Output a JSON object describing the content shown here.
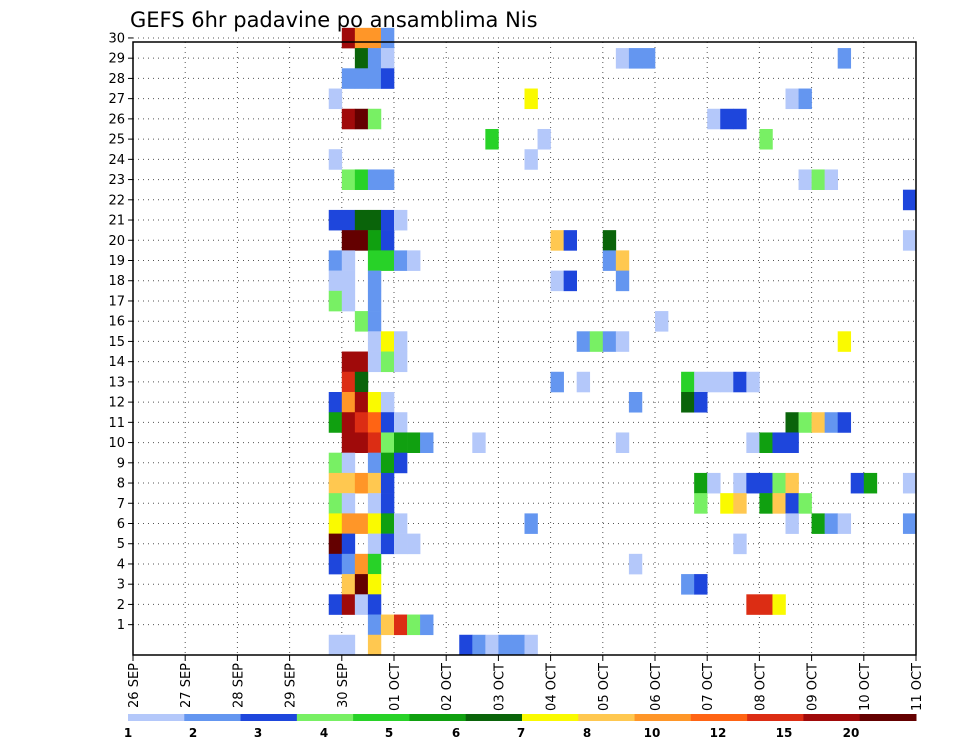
{
  "chart_data": {
    "type": "heatmap",
    "title": "GEFS 6hr padavine po ansamblima Nis",
    "x_ticks": [
      "26 SEP",
      "27 SEP",
      "28 SEP",
      "29 SEP",
      "30 SEP",
      "01 OCT",
      "02 OCT",
      "03 OCT",
      "04 OCT",
      "05 OCT",
      "06 OCT",
      "07 OCT",
      "08 OCT",
      "09 OCT",
      "10 OCT",
      "11 OCT"
    ],
    "y_ticks": [
      "1",
      "2",
      "3",
      "4",
      "5",
      "6",
      "7",
      "8",
      "9",
      "10",
      "11",
      "12",
      "13",
      "14",
      "15",
      "16",
      "17",
      "18",
      "19",
      "20",
      "21",
      "22",
      "23",
      "24",
      "25",
      "26",
      "27",
      "28",
      "29",
      "30"
    ],
    "x_range": [
      "26 SEP",
      "11 OCT"
    ],
    "y_range": [
      0,
      30
    ],
    "grid": true,
    "colorbar": {
      "labels": [
        "1",
        "2",
        "3",
        "4",
        "5",
        "6",
        "7",
        "8",
        "10",
        "12",
        "15",
        "20"
      ],
      "colors": [
        "#b4c8fa",
        "#6496f0",
        "#1e46dc",
        "#78f064",
        "#28d228",
        "#10a010",
        "#0a640a",
        "#fafa00",
        "#ffc850",
        "#ff9628",
        "#ff6414",
        "#dc2d14",
        "#a00a0a",
        "#640000"
      ]
    },
    "cells": [
      {
        "row": 30,
        "x": "30 SEP 00z",
        "c": "#a00a0a"
      },
      {
        "row": 30,
        "x": "30 SEP 06z",
        "c": "#ff9628"
      },
      {
        "row": 30,
        "x": "30 SEP 12z",
        "c": "#ff9628"
      },
      {
        "row": 30,
        "x": "30 SEP 18z",
        "c": "#6496f0"
      },
      {
        "row": 29,
        "x": "30 SEP 06z",
        "c": "#0a640a"
      },
      {
        "row": 29,
        "x": "30 SEP 12z",
        "c": "#6496f0"
      },
      {
        "row": 29,
        "x": "30 SEP 18z",
        "c": "#b4c8fa"
      },
      {
        "row": 29,
        "x": "05 OCT 06z",
        "c": "#b4c8fa"
      },
      {
        "row": 29,
        "x": "05 OCT 12z",
        "c": "#6496f0"
      },
      {
        "row": 29,
        "x": "05 OCT 18z",
        "c": "#6496f0"
      },
      {
        "row": 29,
        "x": "09 OCT 12z",
        "c": "#6496f0"
      },
      {
        "row": 28,
        "x": "30 SEP 00z",
        "c": "#6496f0"
      },
      {
        "row": 28,
        "x": "30 SEP 06z",
        "c": "#6496f0"
      },
      {
        "row": 28,
        "x": "30 SEP 12z",
        "c": "#6496f0"
      },
      {
        "row": 28,
        "x": "30 SEP 18z",
        "c": "#1e46dc"
      },
      {
        "row": 27,
        "x": "29 SEP 18z",
        "c": "#b4c8fa"
      },
      {
        "row": 27,
        "x": "03 OCT 12z",
        "c": "#fafa00"
      },
      {
        "row": 27,
        "x": "08 OCT 12z",
        "c": "#b4c8fa"
      },
      {
        "row": 27,
        "x": "08 OCT 18z",
        "c": "#6496f0"
      },
      {
        "row": 26,
        "x": "30 SEP 00z",
        "c": "#a00a0a"
      },
      {
        "row": 26,
        "x": "30 SEP 06z",
        "c": "#640000"
      },
      {
        "row": 26,
        "x": "30 SEP 12z",
        "c": "#78f064"
      },
      {
        "row": 26,
        "x": "07 OCT 00z",
        "c": "#b4c8fa"
      },
      {
        "row": 26,
        "x": "07 OCT 06z",
        "c": "#1e46dc"
      },
      {
        "row": 26,
        "x": "07 OCT 12z",
        "c": "#1e46dc"
      },
      {
        "row": 25,
        "x": "02 OCT 18z",
        "c": "#28d228"
      },
      {
        "row": 25,
        "x": "03 OCT 18z",
        "c": "#b4c8fa"
      },
      {
        "row": 25,
        "x": "08 OCT 00z",
        "c": "#78f064"
      },
      {
        "row": 24,
        "x": "29 SEP 18z",
        "c": "#b4c8fa"
      },
      {
        "row": 24,
        "x": "03 OCT 12z",
        "c": "#b4c8fa"
      },
      {
        "row": 23,
        "x": "30 SEP 00z",
        "c": "#78f064"
      },
      {
        "row": 23,
        "x": "30 SEP 06z",
        "c": "#28d228"
      },
      {
        "row": 23,
        "x": "30 SEP 12z",
        "c": "#6496f0"
      },
      {
        "row": 23,
        "x": "30 SEP 18z",
        "c": "#6496f0"
      },
      {
        "row": 23,
        "x": "08 OCT 18z",
        "c": "#b4c8fa"
      },
      {
        "row": 23,
        "x": "09 OCT 00z",
        "c": "#78f064"
      },
      {
        "row": 23,
        "x": "09 OCT 06z",
        "c": "#b4c8fa"
      },
      {
        "row": 22,
        "x": "10 OCT 18z",
        "c": "#1e46dc"
      },
      {
        "row": 21,
        "x": "29 SEP 18z",
        "c": "#1e46dc"
      },
      {
        "row": 21,
        "x": "30 SEP 00z",
        "c": "#1e46dc"
      },
      {
        "row": 21,
        "x": "30 SEP 06z",
        "c": "#0a640a"
      },
      {
        "row": 21,
        "x": "30 SEP 12z",
        "c": "#0a640a"
      },
      {
        "row": 21,
        "x": "30 SEP 18z",
        "c": "#1e46dc"
      },
      {
        "row": 21,
        "x": "01 OCT 00z",
        "c": "#b4c8fa"
      },
      {
        "row": 20,
        "x": "30 SEP 00z",
        "c": "#640000"
      },
      {
        "row": 20,
        "x": "30 SEP 06z",
        "c": "#640000"
      },
      {
        "row": 20,
        "x": "30 SEP 12z",
        "c": "#10a010"
      },
      {
        "row": 20,
        "x": "30 SEP 18z",
        "c": "#1e46dc"
      },
      {
        "row": 20,
        "x": "04 OCT 00z",
        "c": "#ffc850"
      },
      {
        "row": 20,
        "x": "04 OCT 06z",
        "c": "#1e46dc"
      },
      {
        "row": 20,
        "x": "05 OCT 00z",
        "c": "#0a640a"
      },
      {
        "row": 20,
        "x": "10 OCT 18z",
        "c": "#b4c8fa"
      },
      {
        "row": 19,
        "x": "29 SEP 18z",
        "c": "#6496f0"
      },
      {
        "row": 19,
        "x": "30 SEP 00z",
        "c": "#b4c8fa"
      },
      {
        "row": 19,
        "x": "30 SEP 12z",
        "c": "#28d228"
      },
      {
        "row": 19,
        "x": "30 SEP 18z",
        "c": "#28d228"
      },
      {
        "row": 19,
        "x": "01 OCT 00z",
        "c": "#6496f0"
      },
      {
        "row": 19,
        "x": "01 OCT 06z",
        "c": "#b4c8fa"
      },
      {
        "row": 19,
        "x": "05 OCT 00z",
        "c": "#6496f0"
      },
      {
        "row": 19,
        "x": "05 OCT 06z",
        "c": "#ffc850"
      },
      {
        "row": 18,
        "x": "29 SEP 18z",
        "c": "#b4c8fa"
      },
      {
        "row": 18,
        "x": "30 SEP 00z",
        "c": "#b4c8fa"
      },
      {
        "row": 18,
        "x": "30 SEP 12z",
        "c": "#6496f0"
      },
      {
        "row": 18,
        "x": "04 OCT 00z",
        "c": "#b4c8fa"
      },
      {
        "row": 18,
        "x": "04 OCT 06z",
        "c": "#1e46dc"
      },
      {
        "row": 18,
        "x": "05 OCT 06z",
        "c": "#6496f0"
      },
      {
        "row": 17,
        "x": "29 SEP 18z",
        "c": "#78f064"
      },
      {
        "row": 17,
        "x": "30 SEP 00z",
        "c": "#b4c8fa"
      },
      {
        "row": 17,
        "x": "30 SEP 12z",
        "c": "#6496f0"
      },
      {
        "row": 16,
        "x": "30 SEP 06z",
        "c": "#78f064"
      },
      {
        "row": 16,
        "x": "30 SEP 12z",
        "c": "#6496f0"
      },
      {
        "row": 16,
        "x": "06 OCT 00z",
        "c": "#b4c8fa"
      },
      {
        "row": 15,
        "x": "30 SEP 12z",
        "c": "#b4c8fa"
      },
      {
        "row": 15,
        "x": "30 SEP 18z",
        "c": "#fafa00"
      },
      {
        "row": 15,
        "x": "01 OCT 00z",
        "c": "#b4c8fa"
      },
      {
        "row": 15,
        "x": "04 OCT 12z",
        "c": "#6496f0"
      },
      {
        "row": 15,
        "x": "04 OCT 18z",
        "c": "#78f064"
      },
      {
        "row": 15,
        "x": "05 OCT 00z",
        "c": "#6496f0"
      },
      {
        "row": 15,
        "x": "05 OCT 06z",
        "c": "#b4c8fa"
      },
      {
        "row": 15,
        "x": "09 OCT 12z",
        "c": "#fafa00"
      },
      {
        "row": 14,
        "x": "30 SEP 00z",
        "c": "#a00a0a"
      },
      {
        "row": 14,
        "x": "30 SEP 06z",
        "c": "#a00a0a"
      },
      {
        "row": 14,
        "x": "30 SEP 12z",
        "c": "#b4c8fa"
      },
      {
        "row": 14,
        "x": "30 SEP 18z",
        "c": "#78f064"
      },
      {
        "row": 14,
        "x": "01 OCT 00z",
        "c": "#b4c8fa"
      },
      {
        "row": 13,
        "x": "30 SEP 00z",
        "c": "#dc2d14"
      },
      {
        "row": 13,
        "x": "30 SEP 06z",
        "c": "#0a640a"
      },
      {
        "row": 13,
        "x": "04 OCT 00z",
        "c": "#6496f0"
      },
      {
        "row": 13,
        "x": "04 OCT 12z",
        "c": "#b4c8fa"
      },
      {
        "row": 13,
        "x": "06 OCT 12z",
        "c": "#28d228"
      },
      {
        "row": 13,
        "x": "06 OCT 18z",
        "c": "#b4c8fa"
      },
      {
        "row": 13,
        "x": "07 OCT 00z",
        "c": "#b4c8fa"
      },
      {
        "row": 13,
        "x": "07 OCT 06z",
        "c": "#b4c8fa"
      },
      {
        "row": 13,
        "x": "07 OCT 12z",
        "c": "#1e46dc"
      },
      {
        "row": 13,
        "x": "07 OCT 18z",
        "c": "#b4c8fa"
      },
      {
        "row": 12,
        "x": "29 SEP 18z",
        "c": "#1e46dc"
      },
      {
        "row": 12,
        "x": "30 SEP 00z",
        "c": "#ff9628"
      },
      {
        "row": 12,
        "x": "30 SEP 06z",
        "c": "#a00a0a"
      },
      {
        "row": 12,
        "x": "30 SEP 12z",
        "c": "#fafa00"
      },
      {
        "row": 12,
        "x": "30 SEP 18z",
        "c": "#b4c8fa"
      },
      {
        "row": 12,
        "x": "05 OCT 12z",
        "c": "#6496f0"
      },
      {
        "row": 12,
        "x": "06 OCT 12z",
        "c": "#0a640a"
      },
      {
        "row": 12,
        "x": "06 OCT 18z",
        "c": "#1e46dc"
      },
      {
        "row": 11,
        "x": "29 SEP 18z",
        "c": "#10a010"
      },
      {
        "row": 11,
        "x": "30 SEP 00z",
        "c": "#a00a0a"
      },
      {
        "row": 11,
        "x": "30 SEP 06z",
        "c": "#dc2d14"
      },
      {
        "row": 11,
        "x": "30 SEP 12z",
        "c": "#ff6414"
      },
      {
        "row": 11,
        "x": "30 SEP 18z",
        "c": "#1e46dc"
      },
      {
        "row": 11,
        "x": "01 OCT 00z",
        "c": "#b4c8fa"
      },
      {
        "row": 11,
        "x": "08 OCT 12z",
        "c": "#0a640a"
      },
      {
        "row": 11,
        "x": "08 OCT 18z",
        "c": "#78f064"
      },
      {
        "row": 11,
        "x": "09 OCT 00z",
        "c": "#ffc850"
      },
      {
        "row": 11,
        "x": "09 OCT 06z",
        "c": "#6496f0"
      },
      {
        "row": 11,
        "x": "09 OCT 12z",
        "c": "#1e46dc"
      },
      {
        "row": 10,
        "x": "30 SEP 00z",
        "c": "#a00a0a"
      },
      {
        "row": 10,
        "x": "30 SEP 06z",
        "c": "#a00a0a"
      },
      {
        "row": 10,
        "x": "30 SEP 12z",
        "c": "#dc2d14"
      },
      {
        "row": 10,
        "x": "30 SEP 18z",
        "c": "#78f064"
      },
      {
        "row": 10,
        "x": "01 OCT 00z",
        "c": "#10a010"
      },
      {
        "row": 10,
        "x": "01 OCT 06z",
        "c": "#10a010"
      },
      {
        "row": 10,
        "x": "01 OCT 12z",
        "c": "#6496f0"
      },
      {
        "row": 10,
        "x": "02 OCT 12z",
        "c": "#b4c8fa"
      },
      {
        "row": 10,
        "x": "05 OCT 06z",
        "c": "#b4c8fa"
      },
      {
        "row": 10,
        "x": "07 OCT 18z",
        "c": "#b4c8fa"
      },
      {
        "row": 10,
        "x": "08 OCT 00z",
        "c": "#10a010"
      },
      {
        "row": 10,
        "x": "08 OCT 06z",
        "c": "#1e46dc"
      },
      {
        "row": 10,
        "x": "08 OCT 12z",
        "c": "#1e46dc"
      },
      {
        "row": 9,
        "x": "29 SEP 18z",
        "c": "#78f064"
      },
      {
        "row": 9,
        "x": "30 SEP 00z",
        "c": "#b4c8fa"
      },
      {
        "row": 9,
        "x": "30 SEP 12z",
        "c": "#6496f0"
      },
      {
        "row": 9,
        "x": "30 SEP 18z",
        "c": "#10a010"
      },
      {
        "row": 9,
        "x": "01 OCT 00z",
        "c": "#1e46dc"
      },
      {
        "row": 8,
        "x": "29 SEP 18z",
        "c": "#ffc850"
      },
      {
        "row": 8,
        "x": "30 SEP 00z",
        "c": "#ffc850"
      },
      {
        "row": 8,
        "x": "30 SEP 06z",
        "c": "#ff9628"
      },
      {
        "row": 8,
        "x": "30 SEP 12z",
        "c": "#ffc850"
      },
      {
        "row": 8,
        "x": "30 SEP 18z",
        "c": "#1e46dc"
      },
      {
        "row": 8,
        "x": "06 OCT 18z",
        "c": "#10a010"
      },
      {
        "row": 8,
        "x": "07 OCT 00z",
        "c": "#b4c8fa"
      },
      {
        "row": 8,
        "x": "07 OCT 12z",
        "c": "#b4c8fa"
      },
      {
        "row": 8,
        "x": "07 OCT 18z",
        "c": "#1e46dc"
      },
      {
        "row": 8,
        "x": "08 OCT 00z",
        "c": "#1e46dc"
      },
      {
        "row": 8,
        "x": "08 OCT 06z",
        "c": "#78f064"
      },
      {
        "row": 8,
        "x": "08 OCT 12z",
        "c": "#ffc850"
      },
      {
        "row": 8,
        "x": "09 OCT 18z",
        "c": "#1e46dc"
      },
      {
        "row": 8,
        "x": "10 OCT 00z",
        "c": "#10a010"
      },
      {
        "row": 8,
        "x": "10 OCT 18z",
        "c": "#b4c8fa"
      },
      {
        "row": 7,
        "x": "29 SEP 18z",
        "c": "#78f064"
      },
      {
        "row": 7,
        "x": "30 SEP 00z",
        "c": "#b4c8fa"
      },
      {
        "row": 7,
        "x": "30 SEP 12z",
        "c": "#b4c8fa"
      },
      {
        "row": 7,
        "x": "30 SEP 18z",
        "c": "#1e46dc"
      },
      {
        "row": 7,
        "x": "06 OCT 18z",
        "c": "#78f064"
      },
      {
        "row": 7,
        "x": "07 OCT 06z",
        "c": "#fafa00"
      },
      {
        "row": 7,
        "x": "07 OCT 12z",
        "c": "#ffc850"
      },
      {
        "row": 7,
        "x": "08 OCT 00z",
        "c": "#10a010"
      },
      {
        "row": 7,
        "x": "08 OCT 06z",
        "c": "#ffc850"
      },
      {
        "row": 7,
        "x": "08 OCT 12z",
        "c": "#1e46dc"
      },
      {
        "row": 7,
        "x": "08 OCT 18z",
        "c": "#78f064"
      },
      {
        "row": 6,
        "x": "29 SEP 18z",
        "c": "#fafa00"
      },
      {
        "row": 6,
        "x": "30 SEP 00z",
        "c": "#ff9628"
      },
      {
        "row": 6,
        "x": "30 SEP 06z",
        "c": "#ff9628"
      },
      {
        "row": 6,
        "x": "30 SEP 12z",
        "c": "#fafa00"
      },
      {
        "row": 6,
        "x": "30 SEP 18z",
        "c": "#10a010"
      },
      {
        "row": 6,
        "x": "01 OCT 00z",
        "c": "#b4c8fa"
      },
      {
        "row": 6,
        "x": "03 OCT 12z",
        "c": "#6496f0"
      },
      {
        "row": 6,
        "x": "08 OCT 12z",
        "c": "#b4c8fa"
      },
      {
        "row": 6,
        "x": "09 OCT 00z",
        "c": "#10a010"
      },
      {
        "row": 6,
        "x": "09 OCT 06z",
        "c": "#6496f0"
      },
      {
        "row": 6,
        "x": "09 OCT 12z",
        "c": "#b4c8fa"
      },
      {
        "row": 6,
        "x": "10 OCT 18z",
        "c": "#6496f0"
      },
      {
        "row": 5,
        "x": "29 SEP 18z",
        "c": "#640000"
      },
      {
        "row": 5,
        "x": "30 SEP 00z",
        "c": "#1e46dc"
      },
      {
        "row": 5,
        "x": "30 SEP 12z",
        "c": "#b4c8fa"
      },
      {
        "row": 5,
        "x": "30 SEP 18z",
        "c": "#1e46dc"
      },
      {
        "row": 5,
        "x": "01 OCT 00z",
        "c": "#b4c8fa"
      },
      {
        "row": 5,
        "x": "01 OCT 06z",
        "c": "#b4c8fa"
      },
      {
        "row": 5,
        "x": "07 OCT 12z",
        "c": "#b4c8fa"
      },
      {
        "row": 4,
        "x": "29 SEP 18z",
        "c": "#1e46dc"
      },
      {
        "row": 4,
        "x": "30 SEP 00z",
        "c": "#6496f0"
      },
      {
        "row": 4,
        "x": "30 SEP 06z",
        "c": "#ff9628"
      },
      {
        "row": 4,
        "x": "30 SEP 12z",
        "c": "#28d228"
      },
      {
        "row": 4,
        "x": "05 OCT 12z",
        "c": "#b4c8fa"
      },
      {
        "row": 3,
        "x": "30 SEP 00z",
        "c": "#ffc850"
      },
      {
        "row": 3,
        "x": "30 SEP 06z",
        "c": "#640000"
      },
      {
        "row": 3,
        "x": "30 SEP 12z",
        "c": "#fafa00"
      },
      {
        "row": 3,
        "x": "06 OCT 12z",
        "c": "#6496f0"
      },
      {
        "row": 3,
        "x": "06 OCT 18z",
        "c": "#1e46dc"
      },
      {
        "row": 2,
        "x": "29 SEP 18z",
        "c": "#1e46dc"
      },
      {
        "row": 2,
        "x": "30 SEP 00z",
        "c": "#a00a0a"
      },
      {
        "row": 2,
        "x": "30 SEP 06z",
        "c": "#b4c8fa"
      },
      {
        "row": 2,
        "x": "30 SEP 12z",
        "c": "#1e46dc"
      },
      {
        "row": 2,
        "x": "07 OCT 18z",
        "c": "#dc2d14"
      },
      {
        "row": 2,
        "x": "08 OCT 00z",
        "c": "#dc2d14"
      },
      {
        "row": 2,
        "x": "08 OCT 06z",
        "c": "#fafa00"
      },
      {
        "row": 1,
        "x": "30 SEP 12z",
        "c": "#6496f0"
      },
      {
        "row": 1,
        "x": "30 SEP 18z",
        "c": "#ffc850"
      },
      {
        "row": 1,
        "x": "01 OCT 00z",
        "c": "#dc2d14"
      },
      {
        "row": 1,
        "x": "01 OCT 06z",
        "c": "#78f064"
      },
      {
        "row": 1,
        "x": "01 OCT 12z",
        "c": "#6496f0"
      },
      {
        "row": 0,
        "x": "29 SEP 18z",
        "c": "#b4c8fa"
      },
      {
        "row": 0,
        "x": "30 SEP 00z",
        "c": "#b4c8fa"
      },
      {
        "row": 0,
        "x": "30 SEP 12z",
        "c": "#ffc850"
      },
      {
        "row": 0,
        "x": "02 OCT 06z",
        "c": "#1e46dc"
      },
      {
        "row": 0,
        "x": "02 OCT 12z",
        "c": "#6496f0"
      },
      {
        "row": 0,
        "x": "02 OCT 18z",
        "c": "#b4c8fa"
      },
      {
        "row": 0,
        "x": "03 OCT 00z",
        "c": "#6496f0"
      },
      {
        "row": 0,
        "x": "03 OCT 06z",
        "c": "#6496f0"
      },
      {
        "row": 0,
        "x": "03 OCT 12z",
        "c": "#b4c8fa"
      }
    ]
  }
}
